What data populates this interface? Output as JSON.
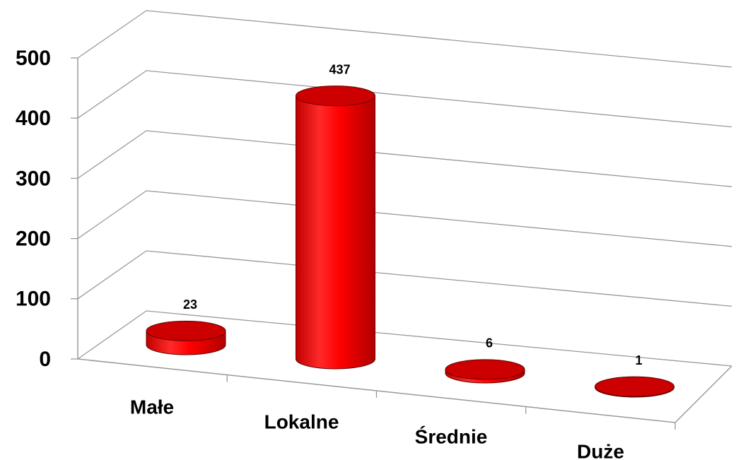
{
  "chart_data": {
    "type": "bar",
    "categories": [
      "Małe",
      "Lokalne",
      "Średnie",
      "Duże"
    ],
    "values": [
      23,
      437,
      6,
      1
    ],
    "color": "#ff0000",
    "ylim": [
      0,
      500
    ],
    "yticks": [
      0,
      100,
      200,
      300,
      400,
      500
    ],
    "grid": true
  }
}
